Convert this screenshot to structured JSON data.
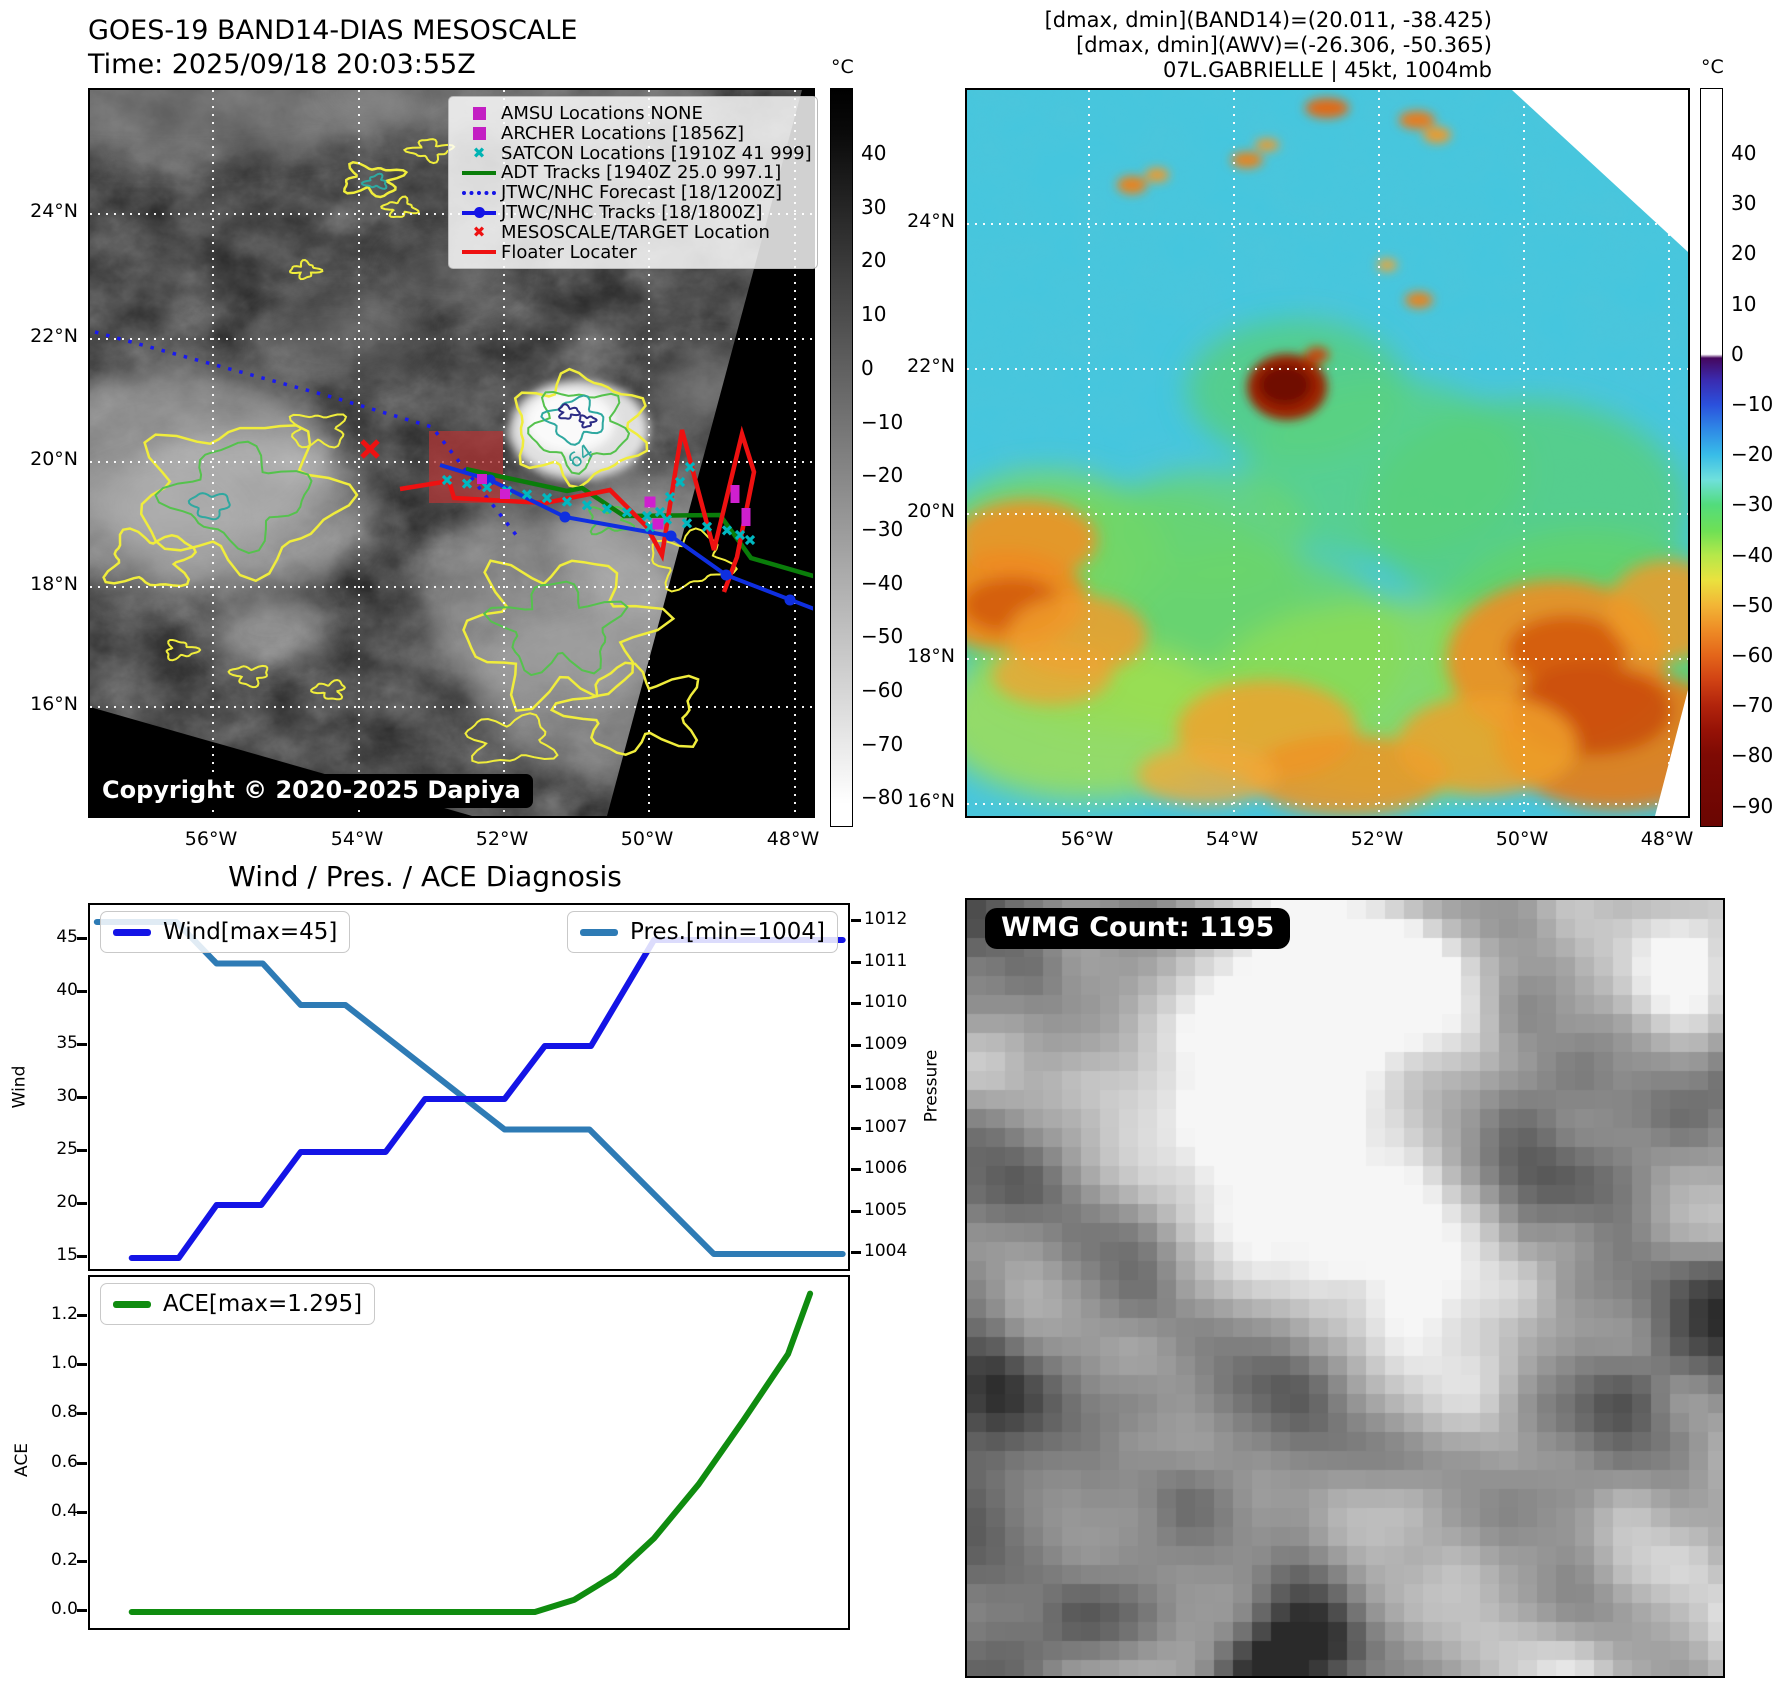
{
  "top_left": {
    "title": "GOES-19 BAND14-DIAS MESOSCALE",
    "subtitle": "Time: 2025/09/18 20:03:55Z",
    "copyright": "Copyright © 2020-2025 Dapiya",
    "x_ticks": [
      "56°W",
      "54°W",
      "52°W",
      "50°W",
      "48°W"
    ],
    "y_ticks": [
      "24°N",
      "22°N",
      "20°N",
      "18°N",
      "16°N"
    ],
    "colorbar": {
      "unit": "°C",
      "ticks": [
        "40",
        "30",
        "20",
        "10",
        "0",
        "−10",
        "−20",
        "−30",
        "−40",
        "−50",
        "−60",
        "−70",
        "−80"
      ]
    },
    "legend": [
      {
        "label": "AMSU Locations NONE",
        "marker": "square",
        "color": "#c31ec3"
      },
      {
        "label": "ARCHER Locations [1856Z]",
        "marker": "square",
        "color": "#c31ec3"
      },
      {
        "label": "SATCON Locations [1910Z 41 999]",
        "marker": "x",
        "color": "#00b3b3"
      },
      {
        "label": "ADT Tracks [1940Z 25.0 997.1]",
        "marker": "line",
        "color": "#0a7d0a"
      },
      {
        "label": "JTWC/NHC Forecast [18/1200Z]",
        "marker": "dotted",
        "color": "#1414e6"
      },
      {
        "label": "JTWC/NHC Tracks [18/1800Z]",
        "marker": "linedot",
        "color": "#1414e6"
      },
      {
        "label": "MESOSCALE/TARGET Location",
        "marker": "x",
        "color": "#ee1111"
      },
      {
        "label": "Floater Locater",
        "marker": "line",
        "color": "#ee1111"
      }
    ],
    "contour_label": "64"
  },
  "top_right": {
    "header_lines": [
      "[dmax, dmin](BAND14)=(20.011, -38.425)",
      "[dmax, dmin](AWV)=(-26.306, -50.365)",
      "07L.GABRIELLE | 45kt, 1004mb"
    ],
    "x_ticks": [
      "56°W",
      "54°W",
      "52°W",
      "50°W",
      "48°W"
    ],
    "y_ticks": [
      "24°N",
      "22°N",
      "20°N",
      "18°N",
      "16°N"
    ],
    "colorbar": {
      "unit": "°C",
      "ticks": [
        "40",
        "30",
        "20",
        "10",
        "0",
        "−10",
        "−20",
        "−30",
        "−40",
        "−50",
        "−60",
        "−70",
        "−80",
        "−90"
      ]
    }
  },
  "bottom_left": {
    "title": "Wind / Pres. / ACE Diagnosis",
    "wind_axis": {
      "label": "Wind",
      "ticks": [
        "45",
        "40",
        "35",
        "30",
        "25",
        "20",
        "15"
      ]
    },
    "pressure_axis": {
      "label": "Pressure",
      "ticks": [
        "1012",
        "1011",
        "1010",
        "1009",
        "1008",
        "1007",
        "1006",
        "1005",
        "1004"
      ]
    },
    "ace_axis": {
      "label": "ACE",
      "ticks": [
        "1.2",
        "1.0",
        "0.8",
        "0.6",
        "0.4",
        "0.2",
        "0.0"
      ]
    }
  },
  "bottom_right": {
    "wmg_label": "WMG Count: 1195"
  },
  "chart_data": [
    {
      "type": "line",
      "title": "Wind / Pres. / ACE Diagnosis",
      "ylabel": "Wind",
      "y2label": "Pressure",
      "ylim": [
        15,
        45
      ],
      "y2lim": [
        1004,
        1012
      ],
      "grid": false,
      "legend_position": "top",
      "series": [
        {
          "name": "Wind[max=45]",
          "axis": "left",
          "color": "#1414e6",
          "x": [
            0.055,
            0.117,
            0.167,
            0.226,
            0.278,
            0.39,
            0.442,
            0.547,
            0.6,
            0.661,
            0.744,
            0.993
          ],
          "values": [
            15,
            15,
            20,
            20,
            25,
            25,
            30,
            30,
            35,
            35,
            45,
            45
          ]
        },
        {
          "name": "Pres.[min=1004]",
          "axis": "right",
          "color": "#2e7bb5",
          "x": [
            0.009,
            0.114,
            0.167,
            0.228,
            0.278,
            0.337,
            0.547,
            0.659,
            0.823,
            0.993
          ],
          "values": [
            1012,
            1012,
            1011,
            1011,
            1010,
            1010,
            1007,
            1007,
            1004,
            1004
          ]
        }
      ]
    },
    {
      "type": "line",
      "ylabel": "ACE",
      "ylim": [
        0,
        1.295
      ],
      "grid": false,
      "series": [
        {
          "name": "ACE[max=1.295]",
          "axis": "left",
          "color": "#0f8c0f",
          "x": [
            0.055,
            0.587,
            0.639,
            0.692,
            0.744,
            0.803,
            0.862,
            0.921,
            0.95
          ],
          "values": [
            0,
            0,
            0.05,
            0.15,
            0.3,
            0.52,
            0.78,
            1.05,
            1.295
          ]
        }
      ]
    }
  ]
}
